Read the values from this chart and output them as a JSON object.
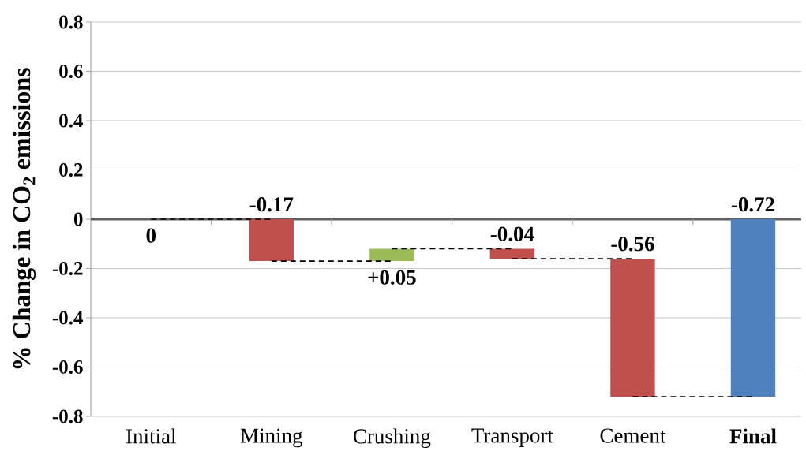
{
  "chart_data": {
    "type": "bar",
    "ylabel": "% Change in CO$_{2}$ emissions",
    "categories": [
      "Initial",
      "Mining",
      "Crushing",
      "Transport",
      "Cement",
      "**Final**"
    ],
    "values": [
      0,
      -0.17,
      0.05,
      -0.04,
      -0.56,
      -0.72
    ],
    "base": [
      null,
      0,
      -0.17,
      -0.12,
      -0.16,
      0
    ],
    "colors": [
      null,
      "#c0504d",
      "#9bbb59",
      "#c0504d",
      "#c0504d",
      "#4f81bd"
    ],
    "value_labels": [
      "0",
      "-0.17",
      "+0.05",
      "-0.04",
      "-0.56",
      "-0.72"
    ],
    "ylim": [
      -0.8,
      0.8
    ],
    "yticks": [
      -0.8,
      -0.6,
      -0.4,
      -0.2,
      0,
      0.2,
      0.4,
      0.6,
      0.8
    ],
    "grid": "y"
  }
}
